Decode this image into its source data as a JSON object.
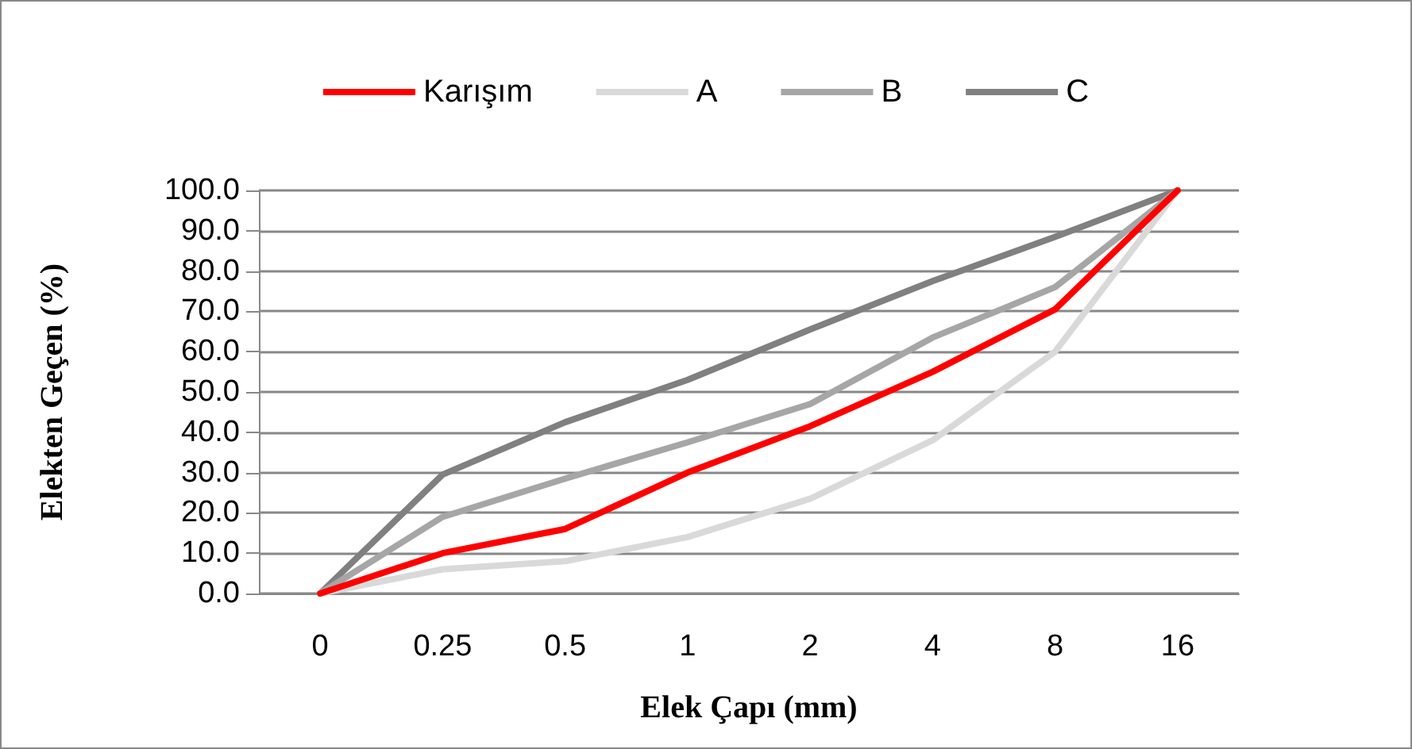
{
  "chart_data": {
    "type": "line",
    "xlabel": "Elek Çapı (mm)",
    "ylabel": "Elekten Geçen (%)",
    "categories": [
      "0",
      "0.25",
      "0.5",
      "1",
      "2",
      "4",
      "8",
      "16"
    ],
    "series": [
      {
        "name": "Karışım",
        "color": "#ff0000",
        "values": [
          0,
          10,
          16,
          30,
          41.5,
          55,
          70.5,
          100
        ]
      },
      {
        "name": "A",
        "color": "#d9d9d9",
        "values": [
          0,
          6,
          8,
          14,
          23.5,
          38,
          60,
          100
        ]
      },
      {
        "name": "B",
        "color": "#a6a6a6",
        "values": [
          0,
          19,
          28.5,
          37.5,
          47,
          63.5,
          76,
          100
        ]
      },
      {
        "name": "C",
        "color": "#808080",
        "values": [
          0,
          29.5,
          42.5,
          53,
          65.5,
          77.5,
          88.5,
          100
        ]
      }
    ],
    "ylim": [
      0,
      100
    ],
    "yticks": [
      {
        "value": 0,
        "label": "0.0"
      },
      {
        "value": 10,
        "label": "10.0"
      },
      {
        "value": 20,
        "label": "20.0"
      },
      {
        "value": 30,
        "label": "30.0"
      },
      {
        "value": 40,
        "label": "40.0"
      },
      {
        "value": 50,
        "label": "50.0"
      },
      {
        "value": 60,
        "label": "60.0"
      },
      {
        "value": 70,
        "label": "70.0"
      },
      {
        "value": 80,
        "label": "80.0"
      },
      {
        "value": 90,
        "label": "90.0"
      },
      {
        "value": 100,
        "label": "100.0"
      }
    ],
    "grid": "y",
    "legend": "top",
    "marker": "none",
    "line_style": "solid"
  }
}
